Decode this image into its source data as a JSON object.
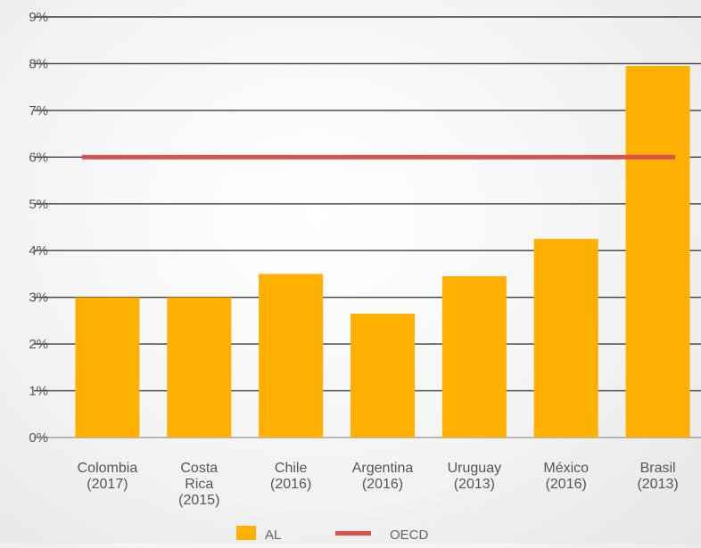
{
  "chart_data": {
    "type": "bar",
    "categories": [
      [
        "Colombia",
        "(2017)"
      ],
      [
        "Costa",
        "Rica",
        "(2015)"
      ],
      [
        "Chile",
        "(2016)"
      ],
      [
        "Argentina",
        "(2016)"
      ],
      [
        "Uruguay",
        "(2013)"
      ],
      [
        "México",
        "(2016)"
      ],
      [
        "Brasil",
        "(2013)"
      ]
    ],
    "series": [
      {
        "name": "AL",
        "values": [
          3.0,
          3.0,
          3.5,
          2.65,
          3.45,
          4.25,
          7.95
        ],
        "color": "#FFB000"
      }
    ],
    "reference_line": {
      "name": "OECD",
      "value": 6.0,
      "color": "#DB5248"
    },
    "y_ticks": [
      "0%",
      "1%",
      "2%",
      "3%",
      "4%",
      "5%",
      "6%",
      "7%",
      "8%",
      "9%"
    ],
    "ylim": [
      0,
      9
    ],
    "grid": true,
    "legend_position": "bottom-center",
    "title": "",
    "xlabel": "",
    "ylabel": ""
  },
  "legend": {
    "items": [
      {
        "label": "AL",
        "kind": "bar",
        "color": "#FFB000"
      },
      {
        "label": "OECD",
        "kind": "line",
        "color": "#DB5248"
      }
    ]
  }
}
